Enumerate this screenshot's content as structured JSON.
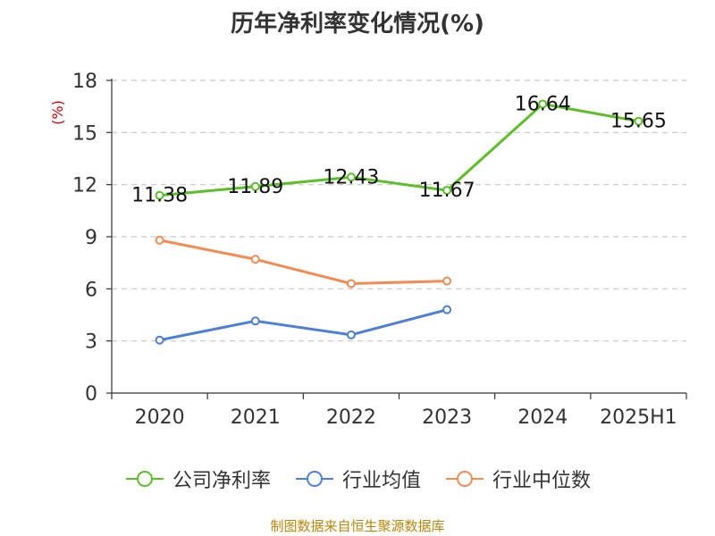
{
  "title": "历年净利率变化情况(%)",
  "source": "制图数据来自恒生聚源数据库",
  "colors": {
    "axis": "#333333",
    "grid": "#c8c8c8",
    "unit": "#cc0000"
  },
  "chart_data": {
    "type": "line",
    "title": "历年净利率变化情况(%)",
    "ylabel": "(%)",
    "categories": [
      "2020",
      "2021",
      "2022",
      "2023",
      "2024",
      "2025H1"
    ],
    "ylim": [
      0,
      18
    ],
    "yticks": [
      0,
      3,
      6,
      9,
      12,
      15,
      18
    ],
    "grid": true,
    "legend_position": "bottom",
    "series": [
      {
        "name": "公司净利率",
        "color": "#5cbf2a",
        "values": [
          11.38,
          11.89,
          12.43,
          11.67,
          16.64,
          15.65
        ],
        "labels": [
          "11.38",
          "11.89",
          "12.43",
          "11.67",
          "16.64",
          "15.65"
        ]
      },
      {
        "name": "行业均值",
        "color": "#4d7fd6",
        "values": [
          3.05,
          4.15,
          3.35,
          4.8,
          null,
          null
        ]
      },
      {
        "name": "行业中位数",
        "color": "#f28c55",
        "values": [
          8.8,
          7.7,
          6.3,
          6.45,
          null,
          null
        ]
      }
    ]
  }
}
